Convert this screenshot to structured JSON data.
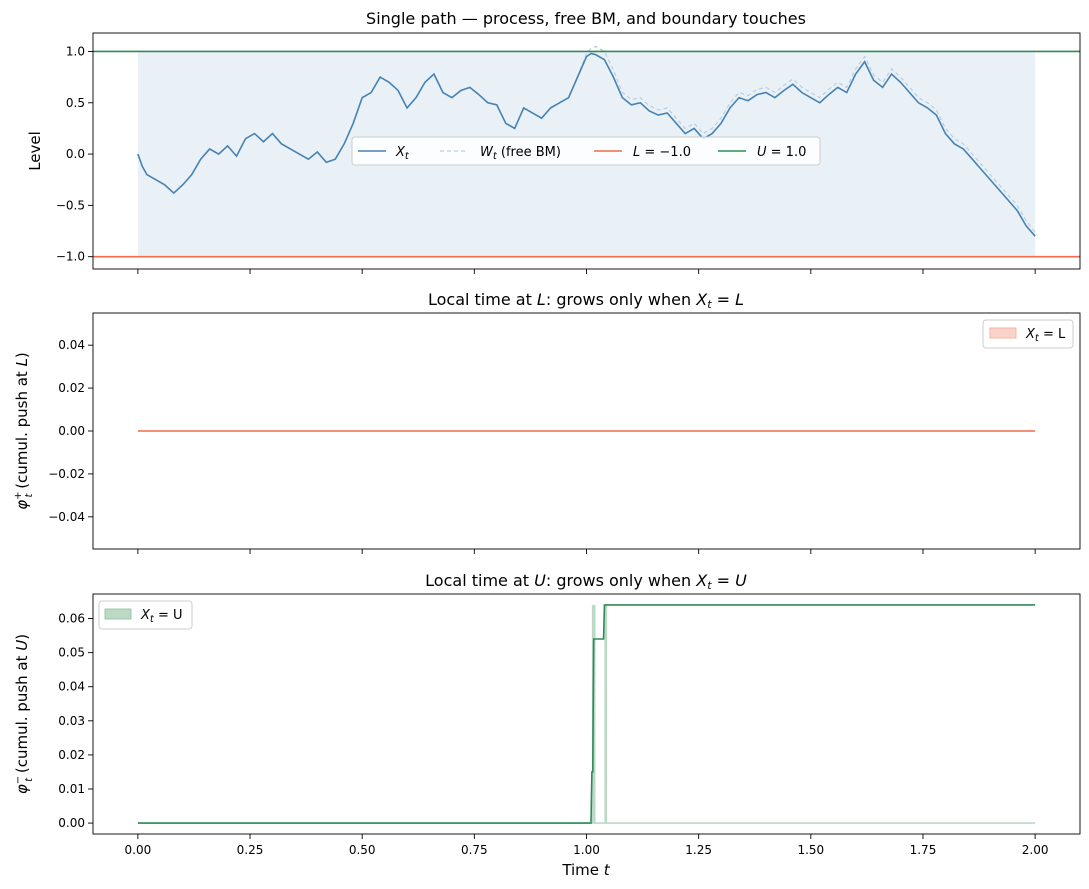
{
  "chart_data": [
    {
      "type": "line",
      "title": "Single path — process, free BM, and boundary touches",
      "xlabel": "",
      "ylabel": "Level",
      "xlim": [
        -0.1,
        2.1
      ],
      "ylim": [
        -1.12,
        1.18
      ],
      "yticks": [
        "1.0",
        "0.5",
        "0.0",
        "−0.5",
        "−1.0"
      ],
      "ytick_values": [
        1.0,
        0.5,
        0.0,
        -0.5,
        -1.0
      ],
      "legend": {
        "placement": "center",
        "entries": [
          {
            "label": "X",
            "sub": "t",
            "suffix": ""
          },
          {
            "label": "W",
            "sub": "t",
            "suffix": " (free BM)"
          },
          {
            "label": "L",
            "sub": "",
            "suffix": " = −1.0"
          },
          {
            "label": "U",
            "sub": "",
            "suffix": " = 1.0"
          }
        ]
      },
      "boundaries": {
        "L": -1.0,
        "U": 1.0
      },
      "colors": {
        "process": "#4682b4",
        "free_bm": "#b8cde4",
        "lower": "#f26b4c",
        "upper": "#2e8b57",
        "band": "#e9f1f6"
      },
      "series": [
        {
          "name": "X_t",
          "x": [
            0.0,
            0.01,
            0.02,
            0.04,
            0.06,
            0.08,
            0.1,
            0.12,
            0.14,
            0.16,
            0.18,
            0.2,
            0.22,
            0.24,
            0.26,
            0.28,
            0.3,
            0.32,
            0.34,
            0.36,
            0.38,
            0.4,
            0.42,
            0.44,
            0.46,
            0.48,
            0.5,
            0.52,
            0.54,
            0.56,
            0.58,
            0.6,
            0.62,
            0.64,
            0.66,
            0.68,
            0.7,
            0.72,
            0.74,
            0.76,
            0.78,
            0.8,
            0.82,
            0.84,
            0.86,
            0.88,
            0.9,
            0.92,
            0.94,
            0.96,
            0.98,
            1.0,
            1.01,
            1.02,
            1.04,
            1.06,
            1.08,
            1.1,
            1.12,
            1.14,
            1.16,
            1.18,
            1.2,
            1.22,
            1.24,
            1.26,
            1.28,
            1.3,
            1.32,
            1.34,
            1.36,
            1.38,
            1.4,
            1.42,
            1.44,
            1.46,
            1.48,
            1.5,
            1.52,
            1.54,
            1.56,
            1.58,
            1.6,
            1.62,
            1.64,
            1.66,
            1.68,
            1.7,
            1.72,
            1.74,
            1.76,
            1.78,
            1.8,
            1.82,
            1.84,
            1.86,
            1.88,
            1.9,
            1.92,
            1.94,
            1.96,
            1.98,
            2.0
          ],
          "values": [
            0.0,
            -0.12,
            -0.2,
            -0.25,
            -0.3,
            -0.38,
            -0.3,
            -0.2,
            -0.05,
            0.05,
            0.0,
            0.08,
            -0.02,
            0.15,
            0.2,
            0.12,
            0.2,
            0.1,
            0.05,
            0.0,
            -0.05,
            0.02,
            -0.08,
            -0.05,
            0.1,
            0.3,
            0.55,
            0.6,
            0.75,
            0.7,
            0.62,
            0.45,
            0.55,
            0.7,
            0.78,
            0.6,
            0.55,
            0.62,
            0.65,
            0.58,
            0.5,
            0.48,
            0.3,
            0.25,
            0.45,
            0.4,
            0.35,
            0.45,
            0.5,
            0.55,
            0.75,
            0.95,
            0.98,
            0.97,
            0.92,
            0.75,
            0.55,
            0.48,
            0.5,
            0.42,
            0.38,
            0.4,
            0.3,
            0.2,
            0.25,
            0.15,
            0.2,
            0.3,
            0.45,
            0.55,
            0.52,
            0.58,
            0.6,
            0.55,
            0.62,
            0.68,
            0.6,
            0.55,
            0.5,
            0.58,
            0.65,
            0.6,
            0.78,
            0.9,
            0.72,
            0.65,
            0.78,
            0.7,
            0.6,
            0.5,
            0.45,
            0.38,
            0.2,
            0.1,
            0.05,
            -0.05,
            -0.15,
            -0.25,
            -0.35,
            -0.45,
            -0.55,
            -0.7,
            -0.8
          ]
        },
        {
          "name": "W_t (free BM)",
          "x": [
            0.0,
            0.01,
            0.02,
            0.04,
            0.06,
            0.08,
            0.1,
            0.12,
            0.14,
            0.16,
            0.18,
            0.2,
            0.22,
            0.24,
            0.26,
            0.28,
            0.3,
            0.32,
            0.34,
            0.36,
            0.38,
            0.4,
            0.42,
            0.44,
            0.46,
            0.48,
            0.5,
            0.52,
            0.54,
            0.56,
            0.58,
            0.6,
            0.62,
            0.64,
            0.66,
            0.68,
            0.7,
            0.72,
            0.74,
            0.76,
            0.78,
            0.8,
            0.82,
            0.84,
            0.86,
            0.88,
            0.9,
            0.92,
            0.94,
            0.96,
            0.98,
            1.0,
            1.01,
            1.02,
            1.04,
            1.06,
            1.08,
            1.1,
            1.12,
            1.14,
            1.16,
            1.18,
            1.2,
            1.22,
            1.24,
            1.26,
            1.28,
            1.3,
            1.32,
            1.34,
            1.36,
            1.38,
            1.4,
            1.42,
            1.44,
            1.46,
            1.48,
            1.5,
            1.52,
            1.54,
            1.56,
            1.58,
            1.6,
            1.62,
            1.64,
            1.66,
            1.68,
            1.7,
            1.72,
            1.74,
            1.76,
            1.78,
            1.8,
            1.82,
            1.84,
            1.86,
            1.88,
            1.9,
            1.92,
            1.94,
            1.96,
            1.98,
            2.0
          ],
          "values": [
            0.0,
            -0.12,
            -0.2,
            -0.25,
            -0.3,
            -0.38,
            -0.3,
            -0.2,
            -0.05,
            0.05,
            0.0,
            0.08,
            -0.02,
            0.15,
            0.2,
            0.12,
            0.2,
            0.1,
            0.05,
            0.0,
            -0.05,
            0.02,
            -0.08,
            -0.05,
            0.1,
            0.3,
            0.55,
            0.6,
            0.75,
            0.7,
            0.62,
            0.45,
            0.55,
            0.7,
            0.78,
            0.6,
            0.55,
            0.62,
            0.65,
            0.58,
            0.5,
            0.48,
            0.3,
            0.25,
            0.45,
            0.4,
            0.35,
            0.45,
            0.5,
            0.55,
            0.75,
            0.98,
            1.03,
            1.05,
            1.0,
            0.82,
            0.6,
            0.53,
            0.55,
            0.47,
            0.43,
            0.45,
            0.35,
            0.25,
            0.3,
            0.2,
            0.25,
            0.35,
            0.5,
            0.6,
            0.57,
            0.63,
            0.65,
            0.6,
            0.67,
            0.73,
            0.65,
            0.6,
            0.55,
            0.63,
            0.7,
            0.65,
            0.83,
            0.95,
            0.77,
            0.7,
            0.83,
            0.75,
            0.65,
            0.55,
            0.5,
            0.43,
            0.25,
            0.15,
            0.1,
            0.0,
            -0.1,
            -0.2,
            -0.3,
            -0.4,
            -0.5,
            -0.65,
            -0.76
          ]
        }
      ]
    },
    {
      "type": "line",
      "title": "Local time at L: grows only when X_t = L",
      "xlabel": "",
      "ylabel": "φ⁺_t (cumul. push at L)",
      "xlim": [
        -0.1,
        2.1
      ],
      "ylim": [
        -0.055,
        0.055
      ],
      "yticks": [
        "0.04",
        "0.02",
        "0.00",
        "−0.02",
        "−0.04"
      ],
      "ytick_values": [
        0.04,
        0.02,
        0.0,
        -0.02,
        -0.04
      ],
      "legend": {
        "placement": "top-right",
        "entries": [
          {
            "label": "X",
            "sub": "t",
            "suffix": " = L"
          }
        ]
      },
      "colors": {
        "line": "#f26b4c",
        "touch": "#fcd3c9"
      },
      "series": [
        {
          "name": "φ⁺_t",
          "x": [
            0.0,
            2.0
          ],
          "values": [
            0.0,
            0.0
          ]
        }
      ]
    },
    {
      "type": "line",
      "title": "Local time at U: grows only when X_t = U",
      "xlabel": "Time t",
      "ylabel": "φ⁻_t (cumul. push at U)",
      "xlim": [
        -0.1,
        2.1
      ],
      "ylim": [
        -0.0032,
        0.0672
      ],
      "xticks": [
        "0.00",
        "0.25",
        "0.50",
        "0.75",
        "1.00",
        "1.25",
        "1.50",
        "1.75",
        "2.00"
      ],
      "xtick_values": [
        0.0,
        0.25,
        0.5,
        0.75,
        1.0,
        1.25,
        1.5,
        1.75,
        2.0
      ],
      "yticks": [
        "0.06",
        "0.05",
        "0.04",
        "0.03",
        "0.02",
        "0.01",
        "0.00"
      ],
      "ytick_values": [
        0.06,
        0.05,
        0.04,
        0.03,
        0.02,
        0.01,
        0.0
      ],
      "legend": {
        "placement": "top-left",
        "entries": [
          {
            "label": "X",
            "sub": "t",
            "suffix": " = U"
          }
        ]
      },
      "colors": {
        "line": "#2e8b57",
        "touch": "#bcd9c6"
      },
      "touch_intervals": [
        [
          1.012,
          1.02
        ],
        [
          1.04,
          1.046
        ]
      ],
      "series": [
        {
          "name": "φ⁻_t",
          "x": [
            0.0,
            1.01,
            1.012,
            1.014,
            1.016,
            1.018,
            1.038,
            1.04,
            1.042,
            2.0
          ],
          "values": [
            0.0,
            0.0,
            0.015,
            0.015,
            0.054,
            0.054,
            0.054,
            0.064,
            0.064,
            0.064
          ]
        }
      ]
    }
  ]
}
